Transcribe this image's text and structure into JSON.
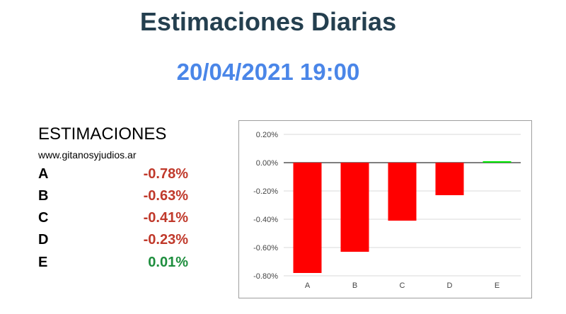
{
  "header": {
    "title": "Estimaciones Diarias",
    "datetime": "20/04/2021 19:00"
  },
  "estimations": {
    "heading": "ESTIMACIONES",
    "website": "www.gitanosyjudios.ar",
    "rows": [
      {
        "letter": "A",
        "value": "-0.78%",
        "color": "#c0392b"
      },
      {
        "letter": "B",
        "value": "-0.63%",
        "color": "#c0392b"
      },
      {
        "letter": "C",
        "value": "-0.41%",
        "color": "#c0392b"
      },
      {
        "letter": "D",
        "value": "-0.23%",
        "color": "#c0392b"
      },
      {
        "letter": "E",
        "value": "0.01%",
        "color": "#1e8e3e"
      }
    ]
  },
  "chart_data": {
    "type": "bar",
    "categories": [
      "A",
      "B",
      "C",
      "D",
      "E"
    ],
    "values": [
      -0.78,
      -0.63,
      -0.41,
      -0.23,
      0.01
    ],
    "ylim": [
      -0.8,
      0.2
    ],
    "yticks": [
      0.2,
      0.0,
      -0.2,
      -0.4,
      -0.6,
      -0.8
    ],
    "ytick_labels": [
      "0.20%",
      "0.00%",
      "-0.20%",
      "-0.40%",
      "-0.60%",
      "-0.80%"
    ],
    "grid": true,
    "negative_color": "#ff0000",
    "positive_color": "#00e600",
    "title": "",
    "xlabel": "",
    "ylabel": ""
  }
}
